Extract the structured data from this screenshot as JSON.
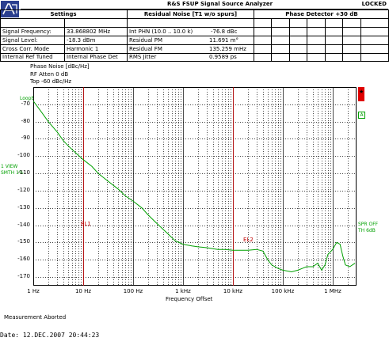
{
  "window": {
    "title": "R&S FSUP Signal Source Analyzer",
    "status": "LOCKED"
  },
  "table": {
    "headers": [
      "Settings",
      "Residual Noise [T1 w/o spurs]",
      "Phase Detector +30 dB"
    ],
    "rows": [
      {
        "label": "Signal Frequency:",
        "value": "33.868802 MHz",
        "noise_label": "Int PHN (10.0 .. 10.0 k)",
        "noise_value": "-76.8 dBc"
      },
      {
        "label": "Signal Level:",
        "value": "-18.3 dBm",
        "noise_label": "Residual PM",
        "noise_value": "11.691 m°"
      },
      {
        "label": "Cross Corr. Mode",
        "value": "Harmonic 1",
        "noise_label": "Residual FM",
        "noise_value": "135.259 mHz"
      },
      {
        "label": "Internal Ref Tuned",
        "value": "Internal Phase Det",
        "noise_label": "RMS Jitter",
        "noise_value": "0.9589 ps"
      }
    ]
  },
  "trace_header": {
    "title": "Phase Noise [dBc/Hz]",
    "rf_atten": "RF Atten     0 dB",
    "top": "Top  -60 dBc/Hz"
  },
  "side_labels": {
    "loop_bw": "LoopBW",
    "left_mid_1": "1 VIEW",
    "left_mid_2": "SMTH 1%",
    "right_1": "SPR OFF",
    "right_2": "TH 6dB",
    "right_marker_a": "A"
  },
  "markers": {
    "el1": "EL1",
    "el2": "EL2"
  },
  "footer": {
    "status": "Measurement Aborted",
    "date": "Date: 12.DEC.2007   20:44:23"
  },
  "colors": {
    "trace": "#00a000",
    "limit_lines": "#e00000",
    "grid": "#000000",
    "logo": "#2b3f8f"
  },
  "chart_data": {
    "type": "line",
    "title": "Phase Noise [dBc/Hz]",
    "xlabel": "Frequency Offset",
    "ylabel": "",
    "x_scale": "log",
    "xlim": [
      1,
      3000000
    ],
    "ylim": [
      -175,
      -60
    ],
    "x_ticks": [
      {
        "v": 1,
        "label": "1 Hz"
      },
      {
        "v": 10,
        "label": "10 Hz"
      },
      {
        "v": 100,
        "label": "100 Hz"
      },
      {
        "v": 1000,
        "label": "1 kHz"
      },
      {
        "v": 10000,
        "label": "10 kHz"
      },
      {
        "v": 100000,
        "label": "100 kHz"
      },
      {
        "v": 1000000,
        "label": "1 MHz"
      }
    ],
    "y_ticks": [
      -70,
      -80,
      -90,
      -100,
      -110,
      -120,
      -130,
      -140,
      -150,
      -160,
      -170
    ],
    "vertical_lines": [
      10,
      10000
    ],
    "series": [
      {
        "points": [
          [
            1,
            -68
          ],
          [
            1.5,
            -75
          ],
          [
            2,
            -80
          ],
          [
            3,
            -86
          ],
          [
            4,
            -91
          ],
          [
            5,
            -94
          ],
          [
            7,
            -98
          ],
          [
            10,
            -102
          ],
          [
            15,
            -106
          ],
          [
            20,
            -110
          ],
          [
            30,
            -114
          ],
          [
            50,
            -119
          ],
          [
            70,
            -123
          ],
          [
            100,
            -126
          ],
          [
            150,
            -130
          ],
          [
            200,
            -134
          ],
          [
            300,
            -139
          ],
          [
            500,
            -145
          ],
          [
            700,
            -149
          ],
          [
            1000,
            -151
          ],
          [
            1500,
            -152
          ],
          [
            2000,
            -152.5
          ],
          [
            3000,
            -153
          ],
          [
            5000,
            -154
          ],
          [
            7000,
            -154
          ],
          [
            10000,
            -154.5
          ],
          [
            15000,
            -154.5
          ],
          [
            20000,
            -154.5
          ],
          [
            30000,
            -154
          ],
          [
            40000,
            -155
          ],
          [
            50000,
            -160
          ],
          [
            60000,
            -163
          ],
          [
            80000,
            -165
          ],
          [
            100000,
            -166
          ],
          [
            150000,
            -167
          ],
          [
            200000,
            -166
          ],
          [
            300000,
            -164
          ],
          [
            400000,
            -164
          ],
          [
            500000,
            -162
          ],
          [
            600000,
            -166
          ],
          [
            700000,
            -163
          ],
          [
            800000,
            -157
          ],
          [
            1000000,
            -154
          ],
          [
            1200000,
            -150
          ],
          [
            1400000,
            -151
          ],
          [
            1600000,
            -158
          ],
          [
            1800000,
            -163
          ],
          [
            2200000,
            -164
          ],
          [
            2800000,
            -162
          ]
        ]
      }
    ]
  }
}
